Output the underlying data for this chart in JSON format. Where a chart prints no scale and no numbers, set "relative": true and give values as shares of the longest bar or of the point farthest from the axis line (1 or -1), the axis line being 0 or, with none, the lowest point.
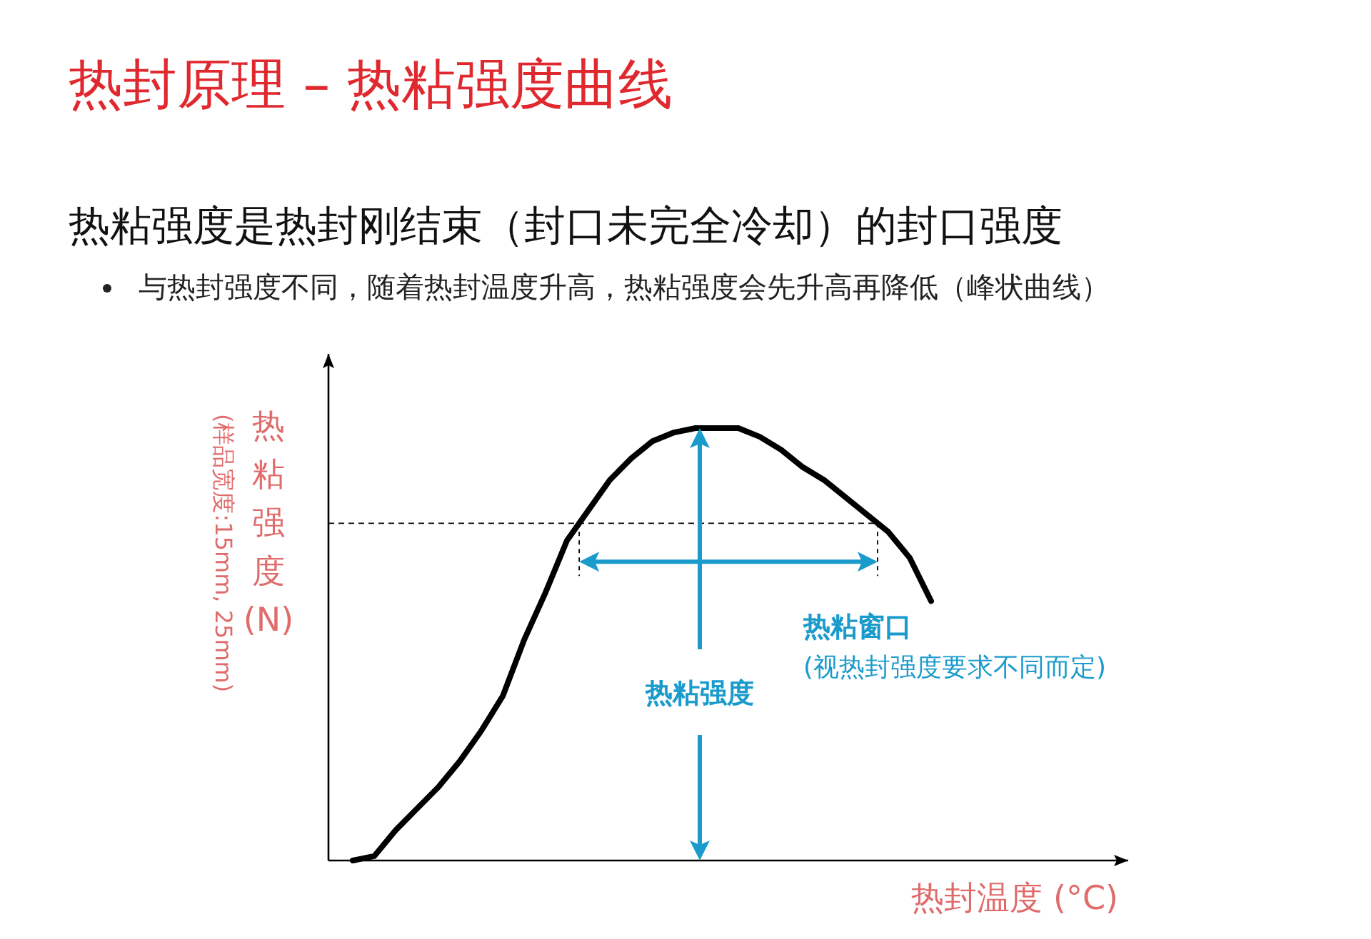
{
  "chart_data": {
    "type": "line",
    "relative": true,
    "title": "热封原理 – 热粘强度曲线",
    "subtitle": "热粘强度是热封刚结束（封口未完全冷却）的封口强度",
    "xlabel": "热封温度 (°C)",
    "ylabel": "热粘强度 (N)",
    "annotations": [
      "与热封强度不同，随着热封温度升高，热粘强度会先升高再降低（峰状曲线）",
      "(样品宽度:15mm, 25mm)",
      "热粘窗口",
      "(视热封强度要求不同而定)",
      "热粘强度"
    ],
    "categories": [
      null,
      null,
      null,
      null,
      null,
      null,
      null,
      null,
      null,
      null,
      null,
      null,
      null,
      null,
      null,
      null,
      null,
      null,
      null,
      null,
      null,
      null,
      null,
      null,
      null,
      null,
      null,
      null
    ],
    "series": [
      {
        "color": "#000000",
        "values": [
          0,
          0.01,
          0.07,
          0.12,
          0.17,
          0.23,
          0.3,
          0.38,
          0.51,
          0.62,
          0.74,
          0.81,
          0.88,
          0.93,
          0.97,
          0.99,
          1,
          1,
          1,
          0.98,
          0.95,
          0.91,
          0.88,
          0.84,
          0.8,
          0.76,
          0.7,
          0.6
        ]
      }
    ],
    "ref_lines": [
      {
        "axis": "y",
        "value": 0.78,
        "color": "#000000",
        "line_style": "dashed"
      }
    ],
    "line_style": "solid",
    "marker": "none"
  }
}
